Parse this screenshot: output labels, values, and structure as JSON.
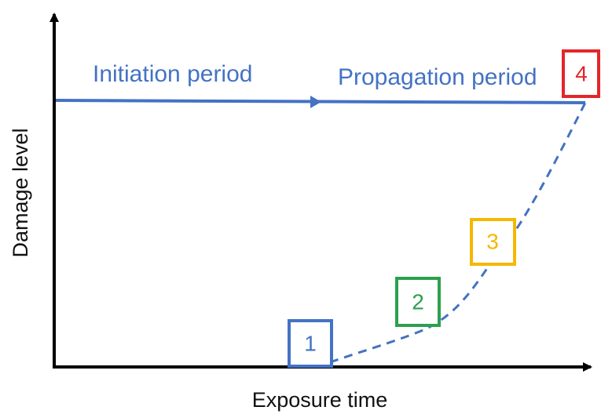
{
  "axes": {
    "x_label": "Exposure time",
    "y_label": "Damage level"
  },
  "periods": {
    "initiation": "Initiation period",
    "propagation": "Propagation period"
  },
  "colors": {
    "axis": "#000000",
    "period_line": "#4472C4",
    "period_text": "#4472C4",
    "curve": "#4472C4",
    "stage_1": "#4472C4",
    "stage_2": "#2CA04C",
    "stage_3": "#F5B700",
    "stage_4": "#E3262A"
  },
  "stages": [
    {
      "label": "1"
    },
    {
      "label": "2"
    },
    {
      "label": "3"
    },
    {
      "label": "4"
    }
  ]
}
